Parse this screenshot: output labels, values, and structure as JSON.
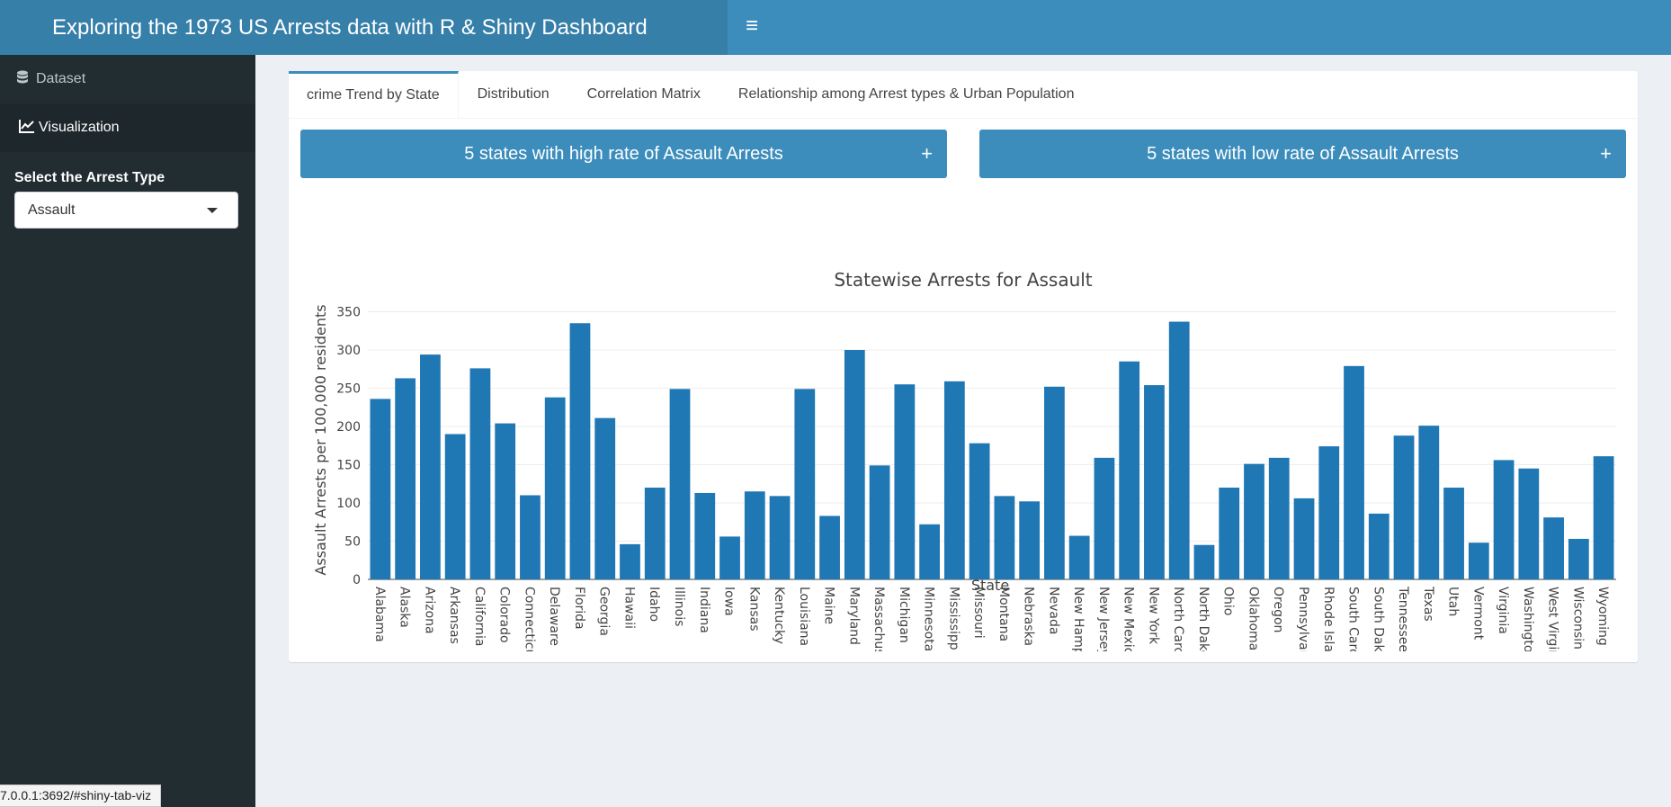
{
  "header": {
    "title": "Exploring the 1973 US Arrests data with R & Shiny Dashboard",
    "menu_icon": "hamburger-icon"
  },
  "sidebar": {
    "items": [
      {
        "label": "Dataset",
        "icon": "database-icon"
      },
      {
        "label": "Visualization",
        "icon": "line-chart-icon"
      }
    ],
    "select_label": "Select the Arrest Type",
    "select_value": "Assault"
  },
  "tabs": [
    {
      "label": "crime Trend by State"
    },
    {
      "label": "Distribution"
    },
    {
      "label": "Correlation Matrix"
    },
    {
      "label": "Relationship among Arrest types & Urban Population"
    }
  ],
  "boxes": {
    "high": {
      "title": "5 states with high rate of Assault Arrests",
      "icon": "+"
    },
    "low": {
      "title": "5 states with low rate of Assault Arrests",
      "icon": "+"
    }
  },
  "status_url": "7.0.0.1:3692/#shiny-tab-viz",
  "colors": {
    "header": "#3c8dbc",
    "logo": "#367fa9",
    "sidebar": "#222d32",
    "bar": "#1f77b4"
  },
  "chart_data": {
    "type": "bar",
    "title": "Statewise Arrests for Assault",
    "xlabel": "State",
    "ylabel": "Assault Arrests per 100,000 residents",
    "ylim": [
      0,
      360
    ],
    "yticks": [
      0,
      50,
      100,
      150,
      200,
      250,
      300,
      350
    ],
    "categories": [
      "Alabama",
      "Alaska",
      "Arizona",
      "Arkansas",
      "California",
      "Colorado",
      "Connecticut",
      "Delaware",
      "Florida",
      "Georgia",
      "Hawaii",
      "Idaho",
      "Illinois",
      "Indiana",
      "Iowa",
      "Kansas",
      "Kentucky",
      "Louisiana",
      "Maine",
      "Maryland",
      "Massachusetts",
      "Michigan",
      "Minnesota",
      "Mississippi",
      "Missouri",
      "Montana",
      "Nebraska",
      "Nevada",
      "New Hampshire",
      "New Jersey",
      "New Mexico",
      "New York",
      "North Carolina",
      "North Dakota",
      "Ohio",
      "Oklahoma",
      "Oregon",
      "Pennsylvania",
      "Rhode Island",
      "South Carolina",
      "South Dakota",
      "Tennessee",
      "Texas",
      "Utah",
      "Vermont",
      "Virginia",
      "Washington",
      "West Virginia",
      "Wisconsin",
      "Wyoming"
    ],
    "values": [
      236,
      263,
      294,
      190,
      276,
      204,
      110,
      238,
      335,
      211,
      46,
      120,
      249,
      113,
      56,
      115,
      109,
      249,
      83,
      300,
      149,
      255,
      72,
      259,
      178,
      109,
      102,
      252,
      57,
      159,
      285,
      254,
      337,
      45,
      120,
      151,
      159,
      106,
      174,
      279,
      86,
      188,
      201,
      120,
      48,
      156,
      145,
      81,
      53,
      161
    ],
    "grid": true
  }
}
